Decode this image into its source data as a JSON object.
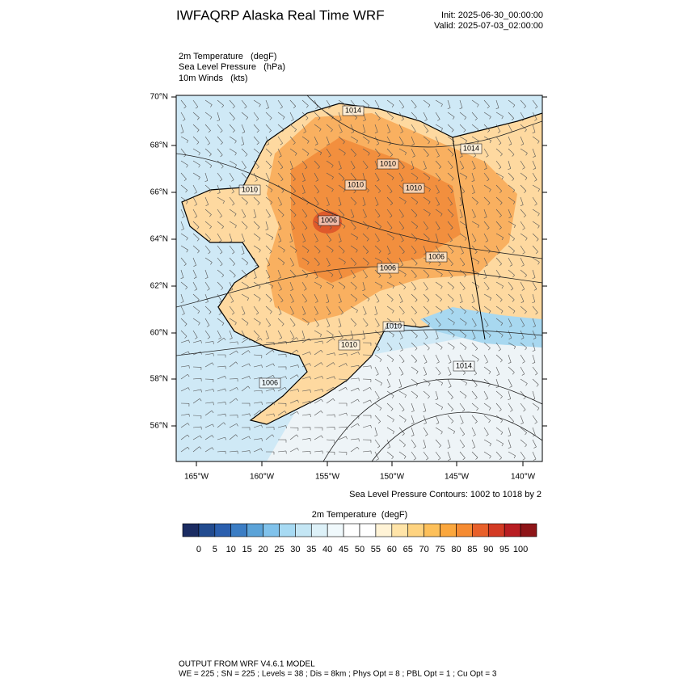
{
  "header": {
    "title": "IWFAQRP Alaska Real Time WRF",
    "init": "Init: 2025-06-30_00:00:00",
    "valid": "Valid: 2025-07-03_02:00:00"
  },
  "fields": [
    "2m Temperature   (degF)",
    "Sea Level Pressure   (hPa)",
    "10m Winds   (kts)"
  ],
  "map": {
    "lat_labels": [
      "70°N",
      "68°N",
      "66°N",
      "64°N",
      "62°N",
      "60°N",
      "58°N",
      "56°N"
    ],
    "lon_labels": [
      "165°W",
      "160°W",
      "155°W",
      "150°W",
      "145°W",
      "140°W"
    ],
    "contour_labels": [
      "1014",
      "1014",
      "1010",
      "1010",
      "1010",
      "1010",
      "1006",
      "1006",
      "1006",
      "1010",
      "1010",
      "1014",
      "1006"
    ],
    "contour_note": "Sea Level Pressure Contours: 1002 to 1018 by 2"
  },
  "colorbar": {
    "title": "2m Temperature  (degF)",
    "colors": [
      "#1b2c62",
      "#224b8f",
      "#2b5fae",
      "#3b7dc4",
      "#5ba3d8",
      "#80c2eb",
      "#a7daf3",
      "#c4e6f4",
      "#ddf1f8",
      "#f0f9fc",
      "#ffffff",
      "#ffffff",
      "#fff3d6",
      "#ffe4a8",
      "#fed380",
      "#fdc05a",
      "#fba73d",
      "#f58b32",
      "#e8602a",
      "#d33a24",
      "#b81d22",
      "#8e1518"
    ],
    "ticks": [
      0,
      5,
      10,
      15,
      20,
      25,
      30,
      35,
      40,
      45,
      50,
      55,
      60,
      65,
      70,
      75,
      80,
      85,
      90,
      95,
      100
    ]
  },
  "footer": {
    "line1": "OUTPUT FROM WRF V4.6.1 MODEL",
    "line2": "WE = 225 ; SN = 225 ; Levels = 38 ; Dis = 8km ; Phys Opt = 8 ; PBL Opt = 1 ; Cu Opt = 3"
  }
}
